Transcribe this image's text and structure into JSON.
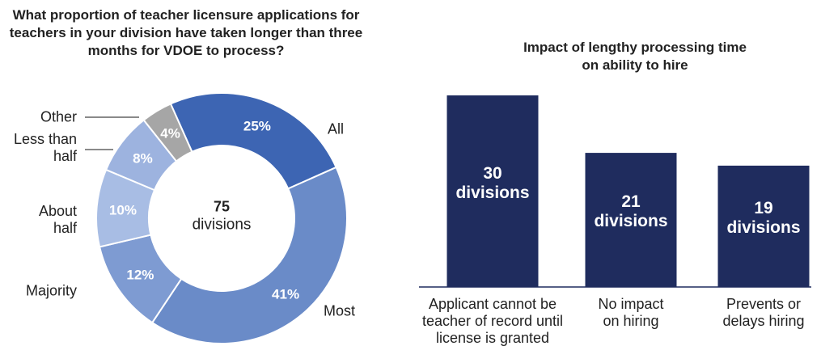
{
  "chart_data": [
    {
      "type": "donut",
      "title": "What proportion of teacher licensure applications for teachers in your division have taken longer than three months for VDOE to process?",
      "categories": [
        "All",
        "Most",
        "Majority",
        "About half",
        "Less than half",
        "Other"
      ],
      "values": [
        25,
        41,
        12,
        10,
        8,
        4
      ],
      "value_labels": [
        "25%",
        "41%",
        "12%",
        "10%",
        "8%",
        "4%"
      ],
      "colors": [
        "#3d65b3",
        "#6a8bc8",
        "#7e9bd2",
        "#a8bde4",
        "#9db3df",
        "#a6a6a6"
      ],
      "center_value": 75,
      "center_label": "divisions"
    },
    {
      "type": "bar",
      "title": "Impact of lengthy processing time on ability to hire",
      "categories": [
        "Applicant cannot be teacher of record until license is granted",
        "No impact on hiring",
        "Prevents or delays hiring"
      ],
      "values": [
        30,
        21,
        19
      ],
      "value_labels": [
        "30 divisions",
        "21 divisions",
        "19 divisions"
      ],
      "color": "#1f2c5e",
      "ylim": [
        0,
        30
      ]
    }
  ]
}
